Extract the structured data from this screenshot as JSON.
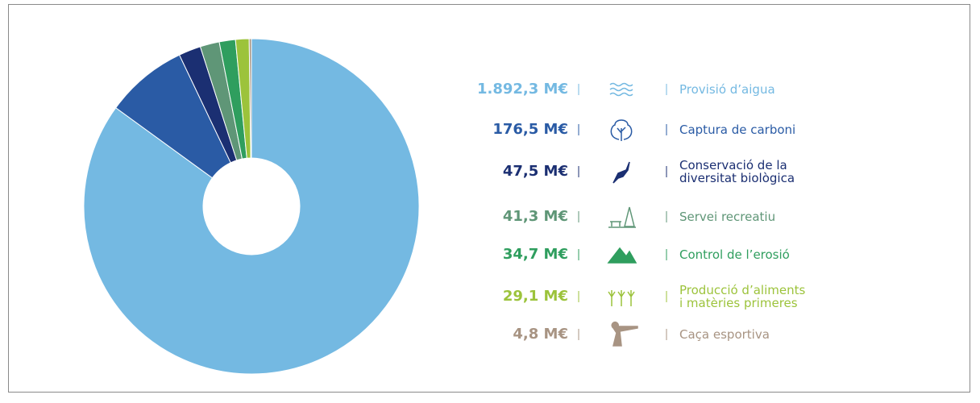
{
  "chart_data": {
    "type": "pie",
    "donut": true,
    "categories": [
      "Provisió d’aigua",
      "Captura de carboni",
      "Conservació de la\ndiversitat biològica",
      "Servei recreatiu",
      "Control de l’erosió",
      "Producció d’aliments\ni matèries primeres",
      "Caça esportiva"
    ],
    "values": [
      1892.3,
      176.5,
      47.5,
      41.3,
      34.7,
      29.1,
      4.8
    ],
    "value_labels": [
      "1.892,3 M€",
      "176,5 M€",
      "47,5 M€",
      "41,3 M€",
      "34,7 M€",
      "29,1 M€",
      "4,8 M€"
    ],
    "colors": [
      "#74b9e2",
      "#2a5ba5",
      "#1b2f72",
      "#5f9677",
      "#2f9e5e",
      "#9cc33b",
      "#a89483"
    ]
  }
}
